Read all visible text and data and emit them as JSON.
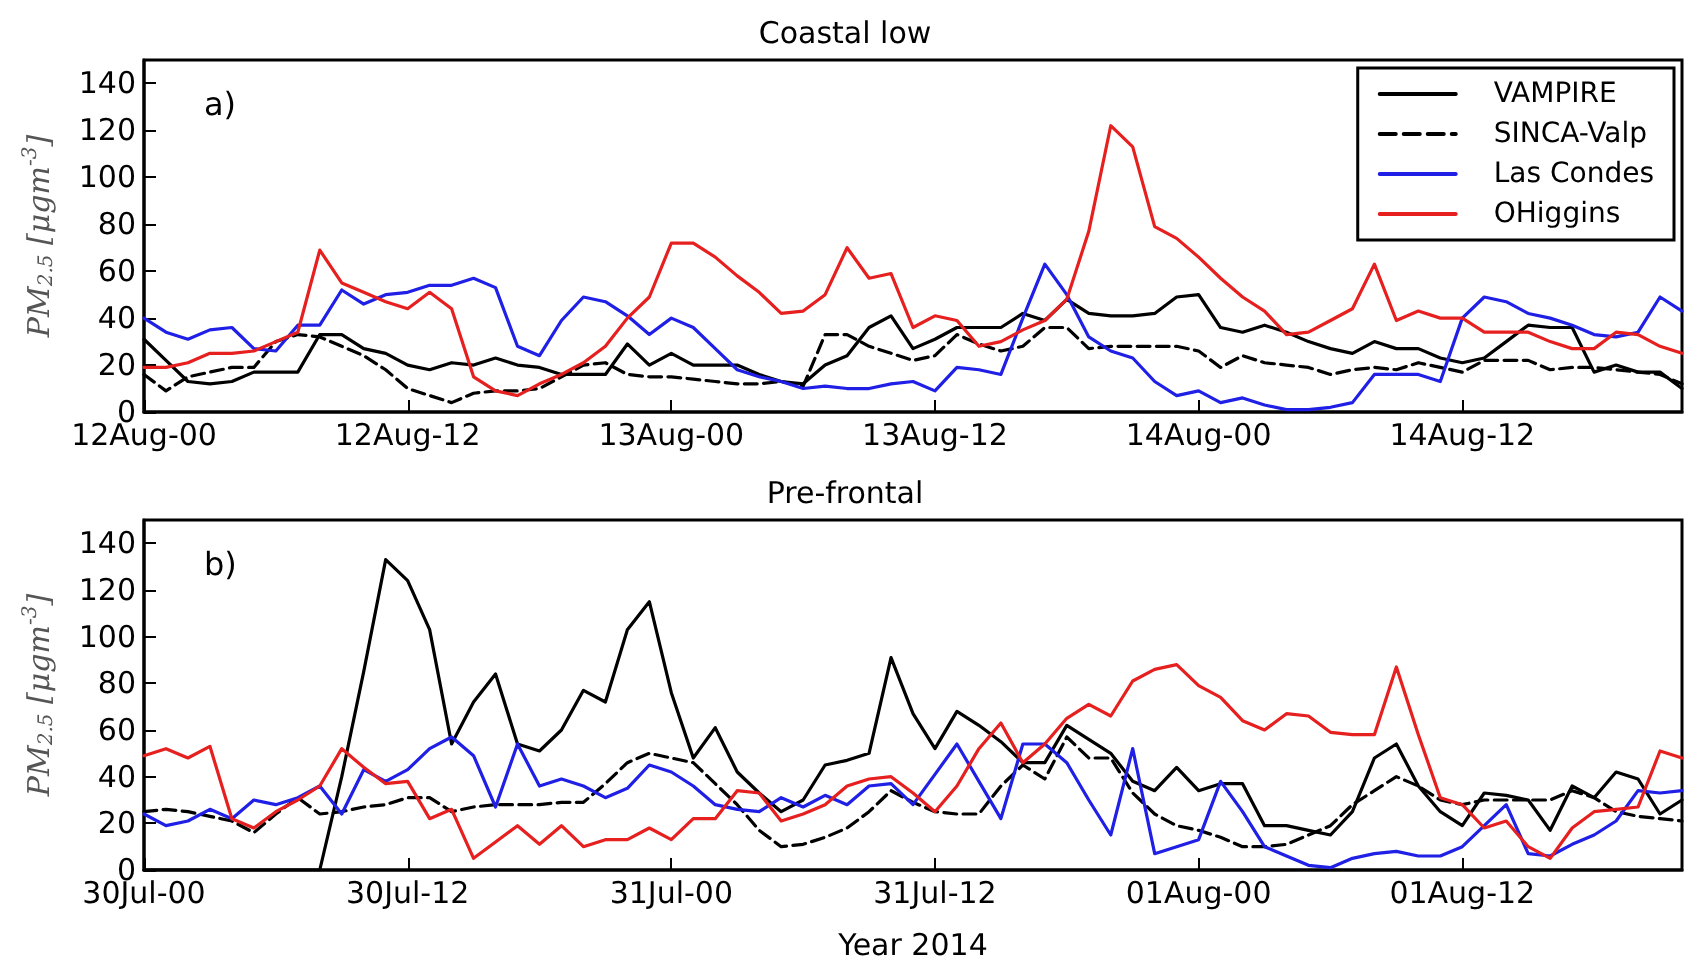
{
  "chart_data": [
    {
      "type": "line",
      "title": "Coastal low",
      "ylabel": "PM$_{2.5}$ [μgm$^{-3}$]",
      "annotations": [
        "a)"
      ],
      "legend": "top right",
      "grid": false,
      "marker": "none",
      "xlim": [
        "2014-08-12T00:00",
        "2014-08-14T22:00"
      ],
      "xticks": [
        {
          "value": "2014-08-12T00:00",
          "label": "12Aug-00"
        },
        {
          "value": "2014-08-12T12:00",
          "label": "12Aug-12"
        },
        {
          "value": "2014-08-13T00:00",
          "label": "13Aug-00"
        },
        {
          "value": "2014-08-13T12:00",
          "label": "13Aug-12"
        },
        {
          "value": "2014-08-14T00:00",
          "label": "14Aug-00"
        },
        {
          "value": "2014-08-14T12:00",
          "label": "14Aug-12"
        }
      ],
      "ylim": [
        0,
        150
      ],
      "yticks": [
        0,
        20,
        40,
        60,
        80,
        100,
        120,
        140
      ],
      "x": [
        "2014-08-12T00:00",
        "2014-08-12T01:00",
        "2014-08-12T02:00",
        "2014-08-12T03:00",
        "2014-08-12T04:00",
        "2014-08-12T05:00",
        "2014-08-12T06:00",
        "2014-08-12T07:00",
        "2014-08-12T08:00",
        "2014-08-12T09:00",
        "2014-08-12T10:00",
        "2014-08-12T11:00",
        "2014-08-12T12:00",
        "2014-08-12T13:00",
        "2014-08-12T14:00",
        "2014-08-12T15:00",
        "2014-08-12T16:00",
        "2014-08-12T17:00",
        "2014-08-12T18:00",
        "2014-08-12T19:00",
        "2014-08-12T20:00",
        "2014-08-12T21:00",
        "2014-08-12T22:00",
        "2014-08-12T23:00",
        "2014-08-13T00:00",
        "2014-08-13T01:00",
        "2014-08-13T02:00",
        "2014-08-13T03:00",
        "2014-08-13T04:00",
        "2014-08-13T05:00",
        "2014-08-13T06:00",
        "2014-08-13T07:00",
        "2014-08-13T08:00",
        "2014-08-13T09:00",
        "2014-08-13T10:00",
        "2014-08-13T11:00",
        "2014-08-13T12:00",
        "2014-08-13T13:00",
        "2014-08-13T14:00",
        "2014-08-13T15:00",
        "2014-08-13T16:00",
        "2014-08-13T17:00",
        "2014-08-13T18:00",
        "2014-08-13T19:00",
        "2014-08-13T20:00",
        "2014-08-13T21:00",
        "2014-08-13T22:00",
        "2014-08-13T23:00",
        "2014-08-14T00:00",
        "2014-08-14T01:00",
        "2014-08-14T02:00",
        "2014-08-14T03:00",
        "2014-08-14T04:00",
        "2014-08-14T05:00",
        "2014-08-14T06:00",
        "2014-08-14T07:00",
        "2014-08-14T08:00",
        "2014-08-14T09:00",
        "2014-08-14T10:00",
        "2014-08-14T11:00",
        "2014-08-14T12:00",
        "2014-08-14T13:00",
        "2014-08-14T14:00",
        "2014-08-14T15:00",
        "2014-08-14T16:00",
        "2014-08-14T17:00",
        "2014-08-14T18:00",
        "2014-08-14T19:00",
        "2014-08-14T20:00",
        "2014-08-14T21:00",
        "2014-08-14T22:00"
      ],
      "series": [
        {
          "name": "VAMPIRE",
          "color": "#000000",
          "line_style": "solid",
          "values": [
            31,
            22,
            13,
            12,
            13,
            17,
            17,
            17,
            33,
            33,
            27,
            25,
            20,
            18,
            21,
            20,
            23,
            20,
            19,
            16,
            16,
            16,
            29,
            20,
            25,
            20,
            20,
            20,
            16,
            13,
            12,
            20,
            24,
            36,
            41,
            27,
            31,
            36,
            36,
            36,
            42,
            39,
            48,
            42,
            41,
            41,
            42,
            49,
            50,
            36,
            34,
            37,
            34,
            30,
            27,
            25,
            30,
            27,
            27,
            23,
            21,
            23,
            30,
            37,
            36,
            36,
            17,
            20,
            17,
            17,
            10
          ]
        },
        {
          "name": "SINCA-Valp",
          "color": "#000000",
          "line_style": "dashed",
          "values": [
            16,
            9,
            15,
            17,
            19,
            19,
            30,
            33,
            32,
            28,
            24,
            18,
            10,
            7,
            4,
            8,
            9,
            9,
            10,
            15,
            20,
            21,
            16,
            15,
            15,
            14,
            13,
            12,
            12,
            13,
            11,
            33,
            33,
            28,
            25,
            22,
            24,
            33,
            29,
            26,
            28,
            36,
            36,
            27,
            28,
            28,
            28,
            28,
            26,
            19,
            24,
            21,
            20,
            19,
            16,
            18,
            19,
            18,
            21,
            19,
            17,
            22,
            22,
            22,
            18,
            19,
            19,
            18,
            17,
            16,
            12
          ]
        },
        {
          "name": "Las Condes",
          "color": "#1f1fe6",
          "line_style": "solid",
          "values": [
            40,
            34,
            31,
            35,
            36,
            27,
            26,
            37,
            37,
            52,
            46,
            50,
            51,
            54,
            54,
            57,
            53,
            28,
            24,
            39,
            49,
            47,
            41,
            33,
            40,
            36,
            27,
            18,
            15,
            13,
            10,
            11,
            10,
            10,
            12,
            13,
            9,
            19,
            18,
            16,
            40,
            63,
            50,
            32,
            26,
            23,
            13,
            7,
            9,
            4,
            6,
            3,
            1,
            1,
            2,
            4,
            16,
            16,
            16,
            13,
            40,
            49,
            47,
            42,
            40,
            37,
            33,
            32,
            34,
            49,
            43
          ]
        },
        {
          "name": "OHiggins",
          "color": "#e61f1f",
          "line_style": "solid",
          "values": [
            19,
            19,
            21,
            25,
            25,
            26,
            30,
            34,
            69,
            55,
            51,
            47,
            44,
            51,
            44,
            15,
            9,
            7,
            12,
            16,
            21,
            28,
            40,
            49,
            72,
            72,
            66,
            58,
            51,
            42,
            43,
            50,
            70,
            57,
            59,
            36,
            41,
            39,
            28,
            30,
            35,
            39,
            48,
            77,
            122,
            113,
            79,
            74,
            66,
            57,
            49,
            43,
            33,
            34,
            39,
            44,
            63,
            39,
            43,
            40,
            40,
            34,
            34,
            34,
            30,
            27,
            27,
            34,
            33,
            28,
            25
          ]
        }
      ]
    },
    {
      "type": "line",
      "title": "Pre-frontal",
      "xlabel": "Year 2014",
      "ylabel": "PM$_{2.5}$ [μgm$^{-3}$]",
      "annotations": [
        "b)"
      ],
      "grid": false,
      "marker": "none",
      "xlim": [
        "2014-07-30T00:00",
        "2014-08-01T22:00"
      ],
      "xticks": [
        {
          "value": "2014-07-30T00:00",
          "label": "30Jul-00"
        },
        {
          "value": "2014-07-30T12:00",
          "label": "30Jul-12"
        },
        {
          "value": "2014-07-31T00:00",
          "label": "31Jul-00"
        },
        {
          "value": "2014-07-31T12:00",
          "label": "31Jul-12"
        },
        {
          "value": "2014-08-01T00:00",
          "label": "01Aug-00"
        },
        {
          "value": "2014-08-01T12:00",
          "label": "01Aug-12"
        }
      ],
      "ylim": [
        0,
        150
      ],
      "yticks": [
        0,
        20,
        40,
        60,
        80,
        100,
        120,
        140
      ],
      "x": [
        "2014-07-30T00:00",
        "2014-07-30T01:00",
        "2014-07-30T02:00",
        "2014-07-30T03:00",
        "2014-07-30T04:00",
        "2014-07-30T05:00",
        "2014-07-30T06:00",
        "2014-07-30T07:00",
        "2014-07-30T08:00",
        "2014-07-30T09:00",
        "2014-07-30T10:00",
        "2014-07-30T11:00",
        "2014-07-30T12:00",
        "2014-07-30T13:00",
        "2014-07-30T14:00",
        "2014-07-30T15:00",
        "2014-07-30T16:00",
        "2014-07-30T17:00",
        "2014-07-30T18:00",
        "2014-07-30T19:00",
        "2014-07-30T20:00",
        "2014-07-30T21:00",
        "2014-07-30T22:00",
        "2014-07-30T23:00",
        "2014-07-31T00:00",
        "2014-07-31T01:00",
        "2014-07-31T02:00",
        "2014-07-31T03:00",
        "2014-07-31T04:00",
        "2014-07-31T05:00",
        "2014-07-31T06:00",
        "2014-07-31T07:00",
        "2014-07-31T08:00",
        "2014-07-31T09:00",
        "2014-07-31T10:00",
        "2014-07-31T11:00",
        "2014-07-31T12:00",
        "2014-07-31T13:00",
        "2014-07-31T14:00",
        "2014-07-31T15:00",
        "2014-07-31T16:00",
        "2014-07-31T17:00",
        "2014-07-31T18:00",
        "2014-07-31T19:00",
        "2014-07-31T20:00",
        "2014-07-31T21:00",
        "2014-07-31T22:00",
        "2014-07-31T23:00",
        "2014-08-01T00:00",
        "2014-08-01T01:00",
        "2014-08-01T02:00",
        "2014-08-01T03:00",
        "2014-08-01T04:00",
        "2014-08-01T05:00",
        "2014-08-01T06:00",
        "2014-08-01T07:00",
        "2014-08-01T08:00",
        "2014-08-01T09:00",
        "2014-08-01T10:00",
        "2014-08-01T11:00",
        "2014-08-01T12:00",
        "2014-08-01T13:00",
        "2014-08-01T14:00",
        "2014-08-01T15:00",
        "2014-08-01T16:00",
        "2014-08-01T17:00",
        "2014-08-01T18:00",
        "2014-08-01T19:00",
        "2014-08-01T20:00",
        "2014-08-01T21:00",
        "2014-08-01T22:00"
      ],
      "series": [
        {
          "color": "#000000",
          "line_style": "solid",
          "values": [
            0,
            0,
            0,
            0,
            0,
            0,
            0,
            0,
            0,
            40,
            85,
            133,
            124,
            103,
            54,
            72,
            84,
            54,
            51,
            60,
            77,
            72,
            103,
            115,
            76,
            48,
            61,
            42,
            33,
            25,
            30,
            45,
            47,
            50,
            91,
            67,
            52,
            68,
            62,
            55,
            46,
            46,
            62,
            56,
            50,
            38,
            34,
            44,
            34,
            37,
            37,
            19,
            19,
            17,
            15,
            25,
            48,
            54,
            36,
            25,
            19,
            33,
            32,
            30,
            17,
            36,
            31,
            42,
            39,
            24,
            30
          ]
        },
        {
          "color": "#000000",
          "line_style": "dashed",
          "values": [
            25,
            26,
            25,
            23,
            21,
            16,
            24,
            31,
            24,
            25,
            27,
            28,
            31,
            31,
            25,
            27,
            28,
            28,
            28,
            29,
            29,
            37,
            46,
            50,
            48,
            46,
            37,
            28,
            17,
            10,
            11,
            14,
            18,
            25,
            34,
            29,
            25,
            24,
            24,
            36,
            45,
            39,
            57,
            48,
            48,
            33,
            24,
            19,
            17,
            14,
            10,
            10,
            11,
            15,
            19,
            28,
            34,
            40,
            36,
            30,
            28,
            30,
            30,
            30,
            30,
            34,
            31,
            25,
            23,
            22,
            21
          ]
        },
        {
          "color": "#1f1fe6",
          "line_style": "solid",
          "values": [
            24,
            19,
            21,
            26,
            22,
            30,
            28,
            31,
            36,
            24,
            43,
            38,
            43,
            52,
            57,
            49,
            27,
            54,
            36,
            39,
            36,
            31,
            35,
            45,
            42,
            36,
            28,
            26,
            25,
            31,
            27,
            32,
            28,
            36,
            37,
            28,
            41,
            54,
            38,
            22,
            54,
            54,
            46,
            30,
            15,
            52,
            7,
            10,
            13,
            38,
            25,
            10,
            6,
            2,
            1,
            5,
            7,
            8,
            6,
            6,
            10,
            19,
            28,
            7,
            6,
            11,
            15,
            21,
            34,
            33,
            34
          ]
        },
        {
          "color": "#e61f1f",
          "line_style": "solid",
          "values": [
            49,
            52,
            48,
            53,
            22,
            18,
            25,
            30,
            36,
            52,
            44,
            37,
            38,
            22,
            26,
            5,
            12,
            19,
            11,
            19,
            10,
            13,
            13,
            18,
            13,
            22,
            22,
            34,
            33,
            21,
            24,
            28,
            36,
            39,
            40,
            33,
            25,
            36,
            52,
            63,
            46,
            54,
            65,
            71,
            66,
            81,
            86,
            88,
            79,
            74,
            64,
            60,
            67,
            66,
            59,
            58,
            58,
            87,
            58,
            31,
            28,
            18,
            21,
            10,
            5,
            18,
            25,
            26,
            27,
            51,
            48
          ]
        }
      ]
    }
  ]
}
